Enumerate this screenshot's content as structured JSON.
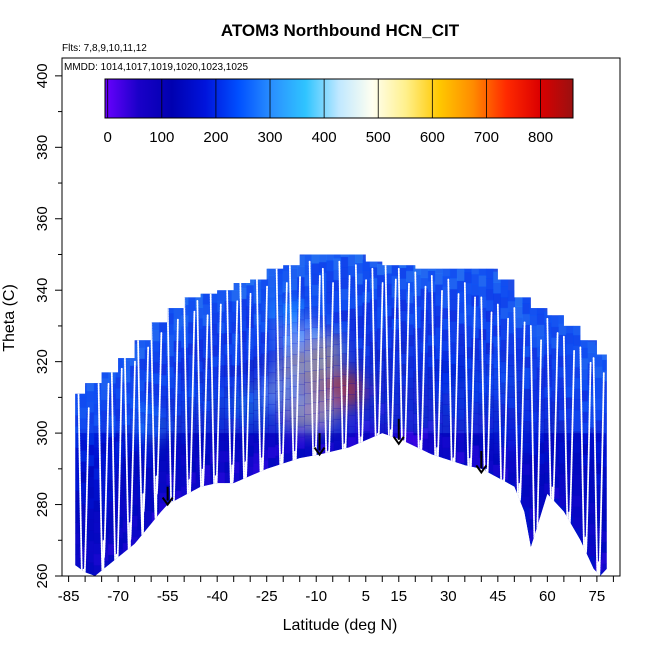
{
  "chart_data": {
    "type": "heatmap",
    "title": "ATOM3 Northbound HCN_CIT",
    "flights_note": "Flts: 7,8,9,10,11,12",
    "dates_note": "MMDD: 1014,1017,1019,1020,1023,1025",
    "xlabel": "Latitude (deg N)",
    "ylabel": "Theta (C)",
    "xlim": [
      -87,
      82
    ],
    "ylim": [
      260,
      405
    ],
    "x_ticks": [
      -85,
      -70,
      -55,
      -40,
      -25,
      -10,
      5,
      15,
      30,
      45,
      60,
      75
    ],
    "x_minor_step": 5,
    "y_ticks": [
      260,
      280,
      300,
      320,
      340,
      360,
      380,
      400
    ],
    "colorbar": {
      "range": [
        -5,
        860
      ],
      "ticks": [
        0,
        100,
        200,
        300,
        400,
        500,
        600,
        700,
        800
      ],
      "colors": [
        "#6a00ff",
        "#1a00c8",
        "#0000b0",
        "#0014dc",
        "#0050ff",
        "#2a90ff",
        "#2fc4ff",
        "#c0e8ff",
        "#fffff0",
        "#fff08c",
        "#ffc800",
        "#ff8c00",
        "#ff2a00",
        "#dc0000",
        "#9a1010"
      ]
    },
    "curtain_top": [
      {
        "lat": -83,
        "theta": 311
      },
      {
        "lat": -80,
        "theta": 314
      },
      {
        "lat": -75,
        "theta": 317
      },
      {
        "lat": -70,
        "theta": 321
      },
      {
        "lat": -65,
        "theta": 326
      },
      {
        "lat": -60,
        "theta": 331
      },
      {
        "lat": -55,
        "theta": 335
      },
      {
        "lat": -50,
        "theta": 338
      },
      {
        "lat": -45,
        "theta": 339
      },
      {
        "lat": -40,
        "theta": 340
      },
      {
        "lat": -35,
        "theta": 342
      },
      {
        "lat": -30,
        "theta": 343
      },
      {
        "lat": -25,
        "theta": 346
      },
      {
        "lat": -20,
        "theta": 347
      },
      {
        "lat": -15,
        "theta": 350
      },
      {
        "lat": -5,
        "theta": 350
      },
      {
        "lat": 0,
        "theta": 350
      },
      {
        "lat": 5,
        "theta": 348
      },
      {
        "lat": 10,
        "theta": 347
      },
      {
        "lat": 15,
        "theta": 347
      },
      {
        "lat": 20,
        "theta": 346
      },
      {
        "lat": 25,
        "theta": 346
      },
      {
        "lat": 30,
        "theta": 346
      },
      {
        "lat": 35,
        "theta": 346
      },
      {
        "lat": 40,
        "theta": 346
      },
      {
        "lat": 45,
        "theta": 343
      },
      {
        "lat": 50,
        "theta": 338
      },
      {
        "lat": 55,
        "theta": 335
      },
      {
        "lat": 60,
        "theta": 333
      },
      {
        "lat": 65,
        "theta": 330
      },
      {
        "lat": 70,
        "theta": 326
      },
      {
        "lat": 75,
        "theta": 322
      },
      {
        "lat": 78,
        "theta": 320
      }
    ],
    "curtain_bottom": [
      {
        "lat": -83,
        "theta": 263
      },
      {
        "lat": -80,
        "theta": 261
      },
      {
        "lat": -77,
        "theta": 260
      },
      {
        "lat": -65,
        "theta": 269
      },
      {
        "lat": -57,
        "theta": 278
      },
      {
        "lat": -55,
        "theta": 280
      },
      {
        "lat": -45,
        "theta": 285
      },
      {
        "lat": -40,
        "theta": 286
      },
      {
        "lat": -35,
        "theta": 286
      },
      {
        "lat": -25,
        "theta": 290
      },
      {
        "lat": -15,
        "theta": 293
      },
      {
        "lat": -9,
        "theta": 294
      },
      {
        "lat": 0,
        "theta": 296
      },
      {
        "lat": 5,
        "theta": 298
      },
      {
        "lat": 10,
        "theta": 300
      },
      {
        "lat": 16,
        "theta": 298
      },
      {
        "lat": 25,
        "theta": 294
      },
      {
        "lat": 35,
        "theta": 291
      },
      {
        "lat": 40,
        "theta": 290
      },
      {
        "lat": 50,
        "theta": 285
      },
      {
        "lat": 53,
        "theta": 278
      },
      {
        "lat": 55,
        "theta": 268
      },
      {
        "lat": 57,
        "theta": 274
      },
      {
        "lat": 60,
        "theta": 283
      },
      {
        "lat": 65,
        "theta": 278
      },
      {
        "lat": 70,
        "theta": 270
      },
      {
        "lat": 74,
        "theta": 262
      },
      {
        "lat": 76,
        "theta": 260
      },
      {
        "lat": 78,
        "theta": 262
      }
    ],
    "hotspots": [
      {
        "lat": -5,
        "theta": 313,
        "value": 620
      },
      {
        "lat": -8,
        "theta": 310,
        "value": 680
      },
      {
        "lat": -3,
        "theta": 312,
        "value": 700
      },
      {
        "lat": -14,
        "theta": 318,
        "value": 540
      },
      {
        "lat": -10,
        "theta": 323,
        "value": 560
      },
      {
        "lat": -15,
        "theta": 327,
        "value": 440
      },
      {
        "lat": -12,
        "theta": 306,
        "value": 530
      },
      {
        "lat": -20,
        "theta": 312,
        "value": 420
      },
      {
        "lat": -18,
        "theta": 333,
        "value": 330
      },
      {
        "lat": -30,
        "theta": 308,
        "value": 330
      },
      {
        "lat": -60,
        "theta": 302,
        "value": 310
      },
      {
        "lat": -45,
        "theta": 310,
        "value": 280
      },
      {
        "lat": 35,
        "theta": 310,
        "value": 260
      },
      {
        "lat": 45,
        "theta": 315,
        "value": 280
      },
      {
        "lat": 30,
        "theta": 318,
        "value": 230
      },
      {
        "lat": 50,
        "theta": 300,
        "value": 220
      }
    ],
    "low_patches": [
      {
        "lat": 20,
        "theta": 297,
        "value": 20
      },
      {
        "lat": 8,
        "theta": 299,
        "value": 60
      }
    ],
    "profiles": [
      {
        "lat": -82,
        "top": 311,
        "bottom": 262
      },
      {
        "lat": -76,
        "top": 318,
        "bottom": 270
      },
      {
        "lat": -72,
        "top": 322,
        "bottom": 266
      },
      {
        "lat": -68,
        "top": 324,
        "bottom": 275
      },
      {
        "lat": -64,
        "top": 328,
        "bottom": 283
      },
      {
        "lat": -60,
        "top": 332,
        "bottom": 288
      },
      {
        "lat": -55,
        "top": 336,
        "bottom": 281
      },
      {
        "lat": -50,
        "top": 338,
        "bottom": 287
      },
      {
        "lat": -46,
        "top": 337,
        "bottom": 290
      },
      {
        "lat": -42,
        "top": 340,
        "bottom": 288
      },
      {
        "lat": -37,
        "top": 341,
        "bottom": 291
      },
      {
        "lat": -33,
        "top": 343,
        "bottom": 292
      },
      {
        "lat": -28,
        "top": 345,
        "bottom": 293
      },
      {
        "lat": -22,
        "top": 346,
        "bottom": 294
      },
      {
        "lat": -18,
        "top": 348,
        "bottom": 295
      },
      {
        "lat": -12,
        "top": 348,
        "bottom": 296
      },
      {
        "lat": -8,
        "top": 346,
        "bottom": 295
      },
      {
        "lat": -3,
        "top": 348,
        "bottom": 297
      },
      {
        "lat": 2,
        "top": 347,
        "bottom": 299
      },
      {
        "lat": 7,
        "top": 346,
        "bottom": 300
      },
      {
        "lat": 11,
        "top": 347,
        "bottom": 301
      },
      {
        "lat": 15,
        "top": 346,
        "bottom": 298
      },
      {
        "lat": 20,
        "top": 345,
        "bottom": 298
      },
      {
        "lat": 25,
        "top": 344,
        "bottom": 296
      },
      {
        "lat": 30,
        "top": 343,
        "bottom": 293
      },
      {
        "lat": 35,
        "top": 342,
        "bottom": 293
      },
      {
        "lat": 40,
        "top": 338,
        "bottom": 290
      },
      {
        "lat": 45,
        "top": 336,
        "bottom": 287
      },
      {
        "lat": 50,
        "top": 335,
        "bottom": 286
      },
      {
        "lat": 55,
        "top": 330,
        "bottom": 270
      },
      {
        "lat": 60,
        "top": 332,
        "bottom": 285
      },
      {
        "lat": 65,
        "top": 327,
        "bottom": 278
      },
      {
        "lat": 70,
        "top": 324,
        "bottom": 271
      },
      {
        "lat": 74,
        "top": 321,
        "bottom": 264
      }
    ],
    "arrows": [
      {
        "lat": -55,
        "theta_start": 285,
        "theta_end": 280
      },
      {
        "lat": -9,
        "theta_start": 300,
        "theta_end": 294
      },
      {
        "lat": 15,
        "theta_start": 304,
        "theta_end": 297
      },
      {
        "lat": 40,
        "theta_start": 295,
        "theta_end": 289
      }
    ]
  }
}
